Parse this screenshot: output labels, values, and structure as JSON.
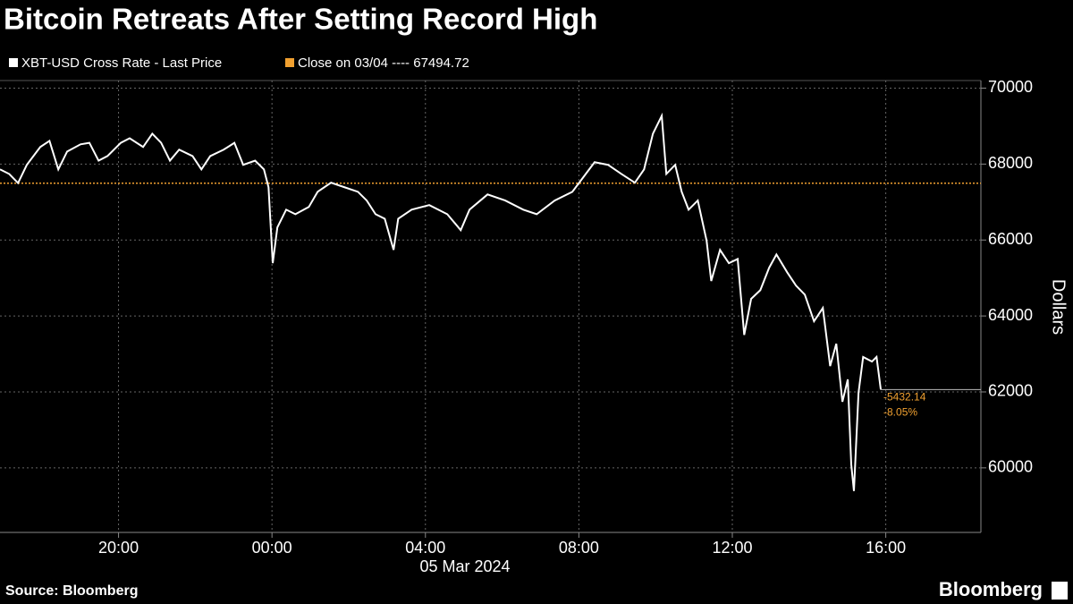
{
  "chart_data": {
    "type": "line",
    "title": "Bitcoin Retreats After Setting Record High",
    "x_sublabel": "05 Mar 2024",
    "ylabel": "Dollars",
    "source": "Source: Bloomberg",
    "brand": "Bloomberg",
    "x": [
      -7.09,
      -6.85,
      -6.62,
      -6.39,
      -6.04,
      -5.8,
      -5.57,
      -5.34,
      -4.99,
      -4.76,
      -4.52,
      -4.29,
      -3.94,
      -3.71,
      -3.36,
      -3.12,
      -2.89,
      -2.66,
      -2.42,
      -2.07,
      -1.84,
      -1.61,
      -1.26,
      -0.98,
      -0.75,
      -0.44,
      -0.21,
      -0.09,
      0.02,
      0.14,
      0.37,
      0.61,
      0.96,
      1.19,
      1.54,
      1.89,
      2.24,
      2.47,
      2.7,
      2.94,
      3.17,
      3.29,
      3.64,
      4.1,
      4.57,
      4.92,
      5.15,
      5.62,
      6.08,
      6.55,
      6.9,
      7.37,
      7.83,
      8.18,
      8.41,
      8.76,
      9.11,
      9.46,
      9.7,
      9.93,
      10.16,
      10.28,
      10.51,
      10.68,
      10.86,
      11.1,
      11.33,
      11.45,
      11.68,
      11.91,
      12.14,
      12.31,
      12.49,
      12.73,
      12.96,
      13.15,
      13.43,
      13.66,
      13.89,
      14.13,
      14.36,
      14.55,
      14.71,
      14.87,
      15.01,
      15.1,
      15.17,
      15.29,
      15.41,
      15.64,
      15.76,
      15.87
    ],
    "series": [
      {
        "name": "XBT-USD Cross Rate - Last Price",
        "color": "#ffffff",
        "values": [
          67860,
          67740,
          67500,
          67980,
          68450,
          68610,
          67860,
          68330,
          68520,
          68560,
          68090,
          68210,
          68560,
          68680,
          68450,
          68800,
          68560,
          68090,
          68380,
          68210,
          67860,
          68210,
          68380,
          68560,
          67980,
          68090,
          67860,
          67390,
          65390,
          66330,
          66800,
          66680,
          66870,
          67270,
          67510,
          67390,
          67270,
          67040,
          66680,
          66560,
          65740,
          66560,
          66800,
          66920,
          66680,
          66260,
          66800,
          67200,
          67040,
          66800,
          66680,
          67040,
          67270,
          67740,
          68050,
          67980,
          67740,
          67510,
          67860,
          68800,
          69270,
          67740,
          67980,
          67270,
          66800,
          67040,
          65980,
          64920,
          65740,
          65390,
          65500,
          63500,
          64450,
          64680,
          65270,
          65620,
          65150,
          64800,
          64560,
          63860,
          64210,
          62680,
          63270,
          61740,
          62330,
          60090,
          59390,
          61980,
          62920,
          62800,
          62920,
          62062.58
        ]
      }
    ],
    "reference": {
      "name": "Close on 03/04 ---- 67494.72",
      "value": 67494.72,
      "color": "#f0a030"
    },
    "change_labels": [
      "-5432.14",
      "-8.05%"
    ],
    "xlim": [
      -7.09,
      18.48
    ],
    "xticks": [
      {
        "value": -4,
        "label": "20:00"
      },
      {
        "value": 0,
        "label": "00:00"
      },
      {
        "value": 4,
        "label": "04:00"
      },
      {
        "value": 8,
        "label": "08:00"
      },
      {
        "value": 12,
        "label": "12:00"
      },
      {
        "value": 16,
        "label": "16:00"
      }
    ],
    "ylim": [
      58300,
      70200
    ],
    "yticks": [
      60000,
      62000,
      64000,
      66000,
      68000,
      70000
    ],
    "grid": true
  }
}
